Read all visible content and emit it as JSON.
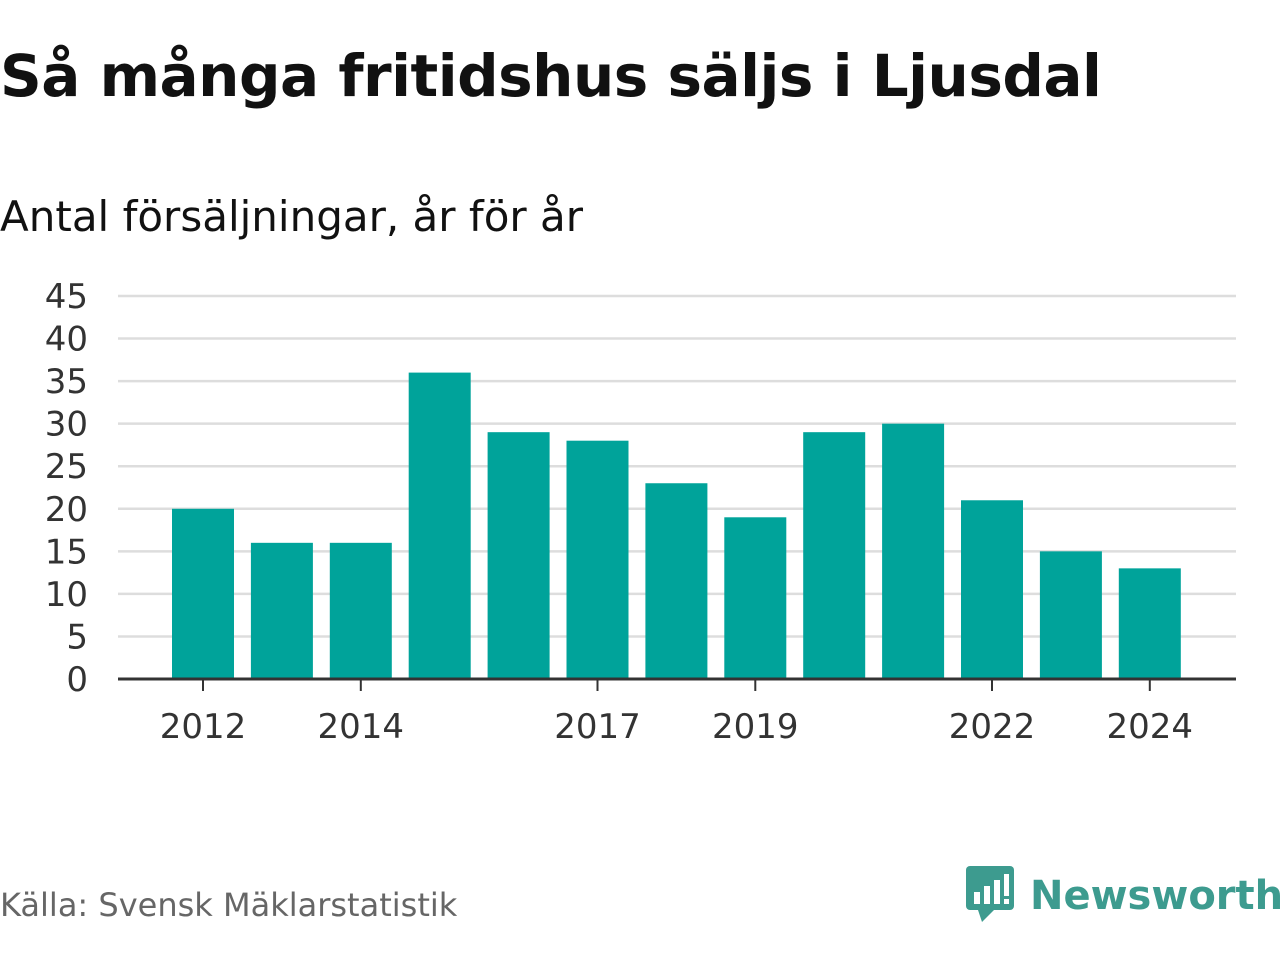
{
  "title": "Så många fritidshus säljs i Ljusdal",
  "subtitle": "Antal försäljningar, år för år",
  "source": "Källa: Svensk Mäklarstatistik",
  "brand": {
    "name": "Newsworthy",
    "icon": "newsworthy-logo-icon"
  },
  "colors": {
    "bar": "#00a39a",
    "grid": "#dddddd",
    "axis": "#333333",
    "text": "#333333",
    "brand": "#3d9b8f"
  },
  "chart_data": {
    "type": "bar",
    "categories": [
      "2012",
      "2013",
      "2014",
      "2015",
      "2016",
      "2017",
      "2018",
      "2019",
      "2020",
      "2021",
      "2022",
      "2023",
      "2024"
    ],
    "values": [
      20,
      16,
      16,
      36,
      29,
      28,
      23,
      19,
      29,
      30,
      21,
      15,
      13
    ],
    "x_tick_labels": [
      "2012",
      "2014",
      "2017",
      "2019",
      "2022",
      "2024"
    ],
    "y_ticks": [
      0,
      5,
      10,
      15,
      20,
      25,
      30,
      35,
      40,
      45
    ],
    "ylim": [
      0,
      45
    ],
    "xlabel": "",
    "ylabel": "",
    "grid": true,
    "legend": "none"
  }
}
